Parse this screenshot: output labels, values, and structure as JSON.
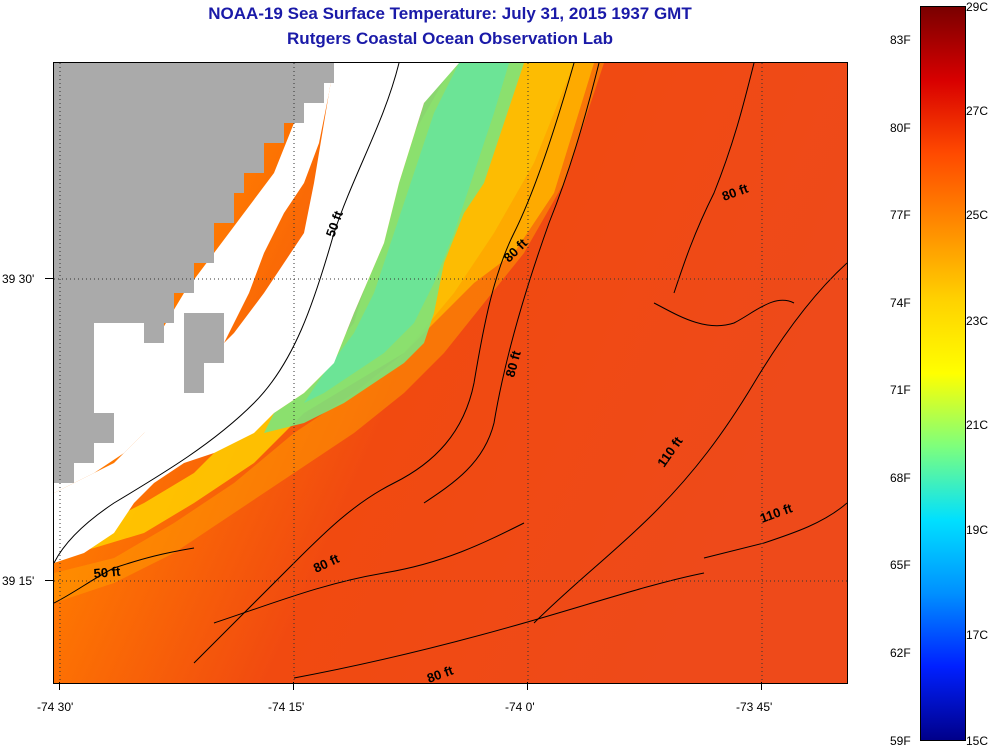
{
  "title": "NOAA-19 Sea Surface Temperature:  July 31, 2015 1937 GMT",
  "subtitle": "Rutgers Coastal Ocean Observation Lab",
  "axes": {
    "x_ticks": [
      "-74 30'",
      "-74 15'",
      "-74 0'",
      "-73 45'"
    ],
    "y_ticks": [
      "39 30'",
      "39 15'"
    ]
  },
  "contours": {
    "c50a": "50 ft",
    "c50b": "50 ft",
    "c80a": "80 ft",
    "c80b": "80 ft",
    "c80c": "80 ft",
    "c80d": "80 ft",
    "c80e": "80 ft",
    "c110a": "110 ft",
    "c110b": "110 ft"
  },
  "colorbar": {
    "celsius": [
      "29C",
      "27C",
      "25C",
      "23C",
      "21C",
      "19C",
      "17C",
      "15C"
    ],
    "fahrenheit": [
      "83F",
      "80F",
      "77F",
      "74F",
      "71F",
      "68F",
      "65F",
      "62F",
      "59F"
    ],
    "colors": [
      "#7a0000",
      "#d80000",
      "#ff4a00",
      "#ff8c00",
      "#ffd200",
      "#ffff00",
      "#7dff7d",
      "#00e0ff",
      "#0090ff",
      "#0020ff",
      "#00008a"
    ]
  },
  "colors": {
    "land": "#aaaaaa",
    "no_data": "#ffffff",
    "title": "#1a1aa8"
  }
}
